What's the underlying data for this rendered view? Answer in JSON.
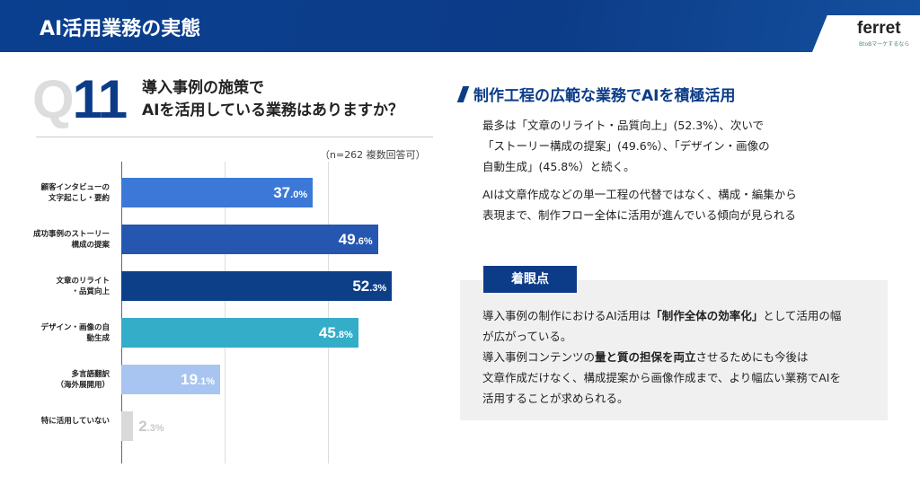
{
  "header": {
    "title": "AI活用業務の実態",
    "logo": "ferret",
    "logo_tagline": "BtoBマーケするなら"
  },
  "question": {
    "q": "Q",
    "num": "11",
    "line1": "導入事例の施策で",
    "line2": "AIを活用している業務はありますか？",
    "note": "（n=262 複数回答可）"
  },
  "chart_data": {
    "type": "bar",
    "orientation": "horizontal",
    "xlim": [
      0,
      60
    ],
    "gridlines": [
      20,
      40
    ],
    "categories": [
      "顧客インタビューの\n文字起こし・要約",
      "成功事例のストーリー\n構成の提案",
      "文章のリライト\n・品質向上",
      "デザイン・画像の自\n動生成",
      "多言語翻訳\n（海外展開用）",
      "特に活用していない"
    ],
    "values": [
      37.0,
      49.6,
      52.3,
      45.8,
      19.1,
      2.3
    ],
    "colors": [
      "#3b78d8",
      "#2556b0",
      "#0c3f87",
      "#33adc8",
      "#a8c4f0",
      "#d9d9d9"
    ],
    "value_colors": [
      "#ffffff",
      "#ffffff",
      "#ffffff",
      "#ffffff",
      "#ffffff",
      "#c8c8c8"
    ]
  },
  "right": {
    "heading": "制作工程の広範な業務でAIを積極活用",
    "p1": [
      "最多は「文章のリライト・品質向上」(52.3%）、次いで",
      "「ストーリー構成の提案」(49.6%）、「デザイン・画像の",
      "自動生成」(45.8%）と続く。"
    ],
    "p2": [
      "AIは文章作成などの単一工程の代替ではなく、構成・編集から",
      "表現まで、制作フロー全体に活用が進んでいる傾向が見られる"
    ],
    "badge": "着眼点",
    "box": {
      "l1a": "導入事例の制作におけるAI活用は",
      "l1b": "「制作全体の効率化」",
      "l1c": "として活用の幅",
      "l2": "が広がっている。",
      "l3a": "導入事例コンテンツの",
      "l3b": "量と質の担保を両立",
      "l3c": "させるためにも今後は",
      "l4": "文章作成だけなく、構成提案から画像作成まで、より幅広い業務でAIを",
      "l5": "活用することが求められる。"
    }
  }
}
